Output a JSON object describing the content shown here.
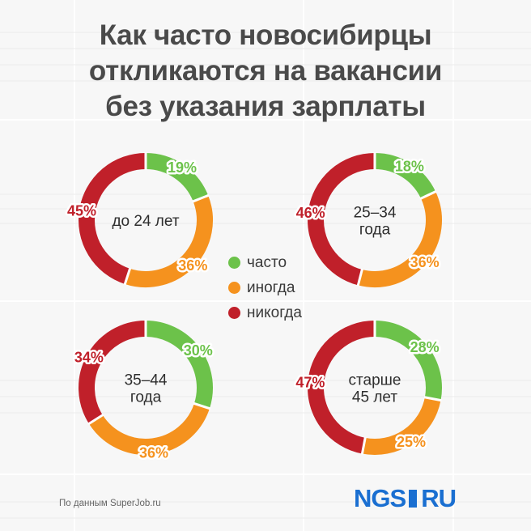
{
  "title": {
    "line1": "Как часто новосибирцы",
    "line2": "откликаются на вакансии",
    "line3": "без указания зарплаты"
  },
  "colors": {
    "often": "#6cc24a",
    "sometimes": "#f5921e",
    "never": "#c0202a"
  },
  "legend": {
    "often": "часто",
    "sometimes": "иногда",
    "never": "никогда"
  },
  "source": "По данным SuperJob.ru",
  "logo": {
    "left": "NGS",
    "right": "RU"
  },
  "chart_data": [
    {
      "type": "pie",
      "label_lines": [
        "до 24 лет"
      ],
      "slices": [
        {
          "category": "часто",
          "value": 19
        },
        {
          "category": "иногда",
          "value": 36
        },
        {
          "category": "никогда",
          "value": 45
        }
      ]
    },
    {
      "type": "pie",
      "label_lines": [
        "25–34",
        "года"
      ],
      "slices": [
        {
          "category": "часто",
          "value": 18
        },
        {
          "category": "иногда",
          "value": 36
        },
        {
          "category": "никогда",
          "value": 46
        }
      ]
    },
    {
      "type": "pie",
      "label_lines": [
        "35–44",
        "года"
      ],
      "slices": [
        {
          "category": "часто",
          "value": 30
        },
        {
          "category": "иногда",
          "value": 36
        },
        {
          "category": "никогда",
          "value": 34
        }
      ]
    },
    {
      "type": "pie",
      "label_lines": [
        "старше",
        "45 лет"
      ],
      "slices": [
        {
          "category": "часто",
          "value": 28
        },
        {
          "category": "иногда",
          "value": 25
        },
        {
          "category": "никогда",
          "value": 47
        }
      ]
    }
  ]
}
